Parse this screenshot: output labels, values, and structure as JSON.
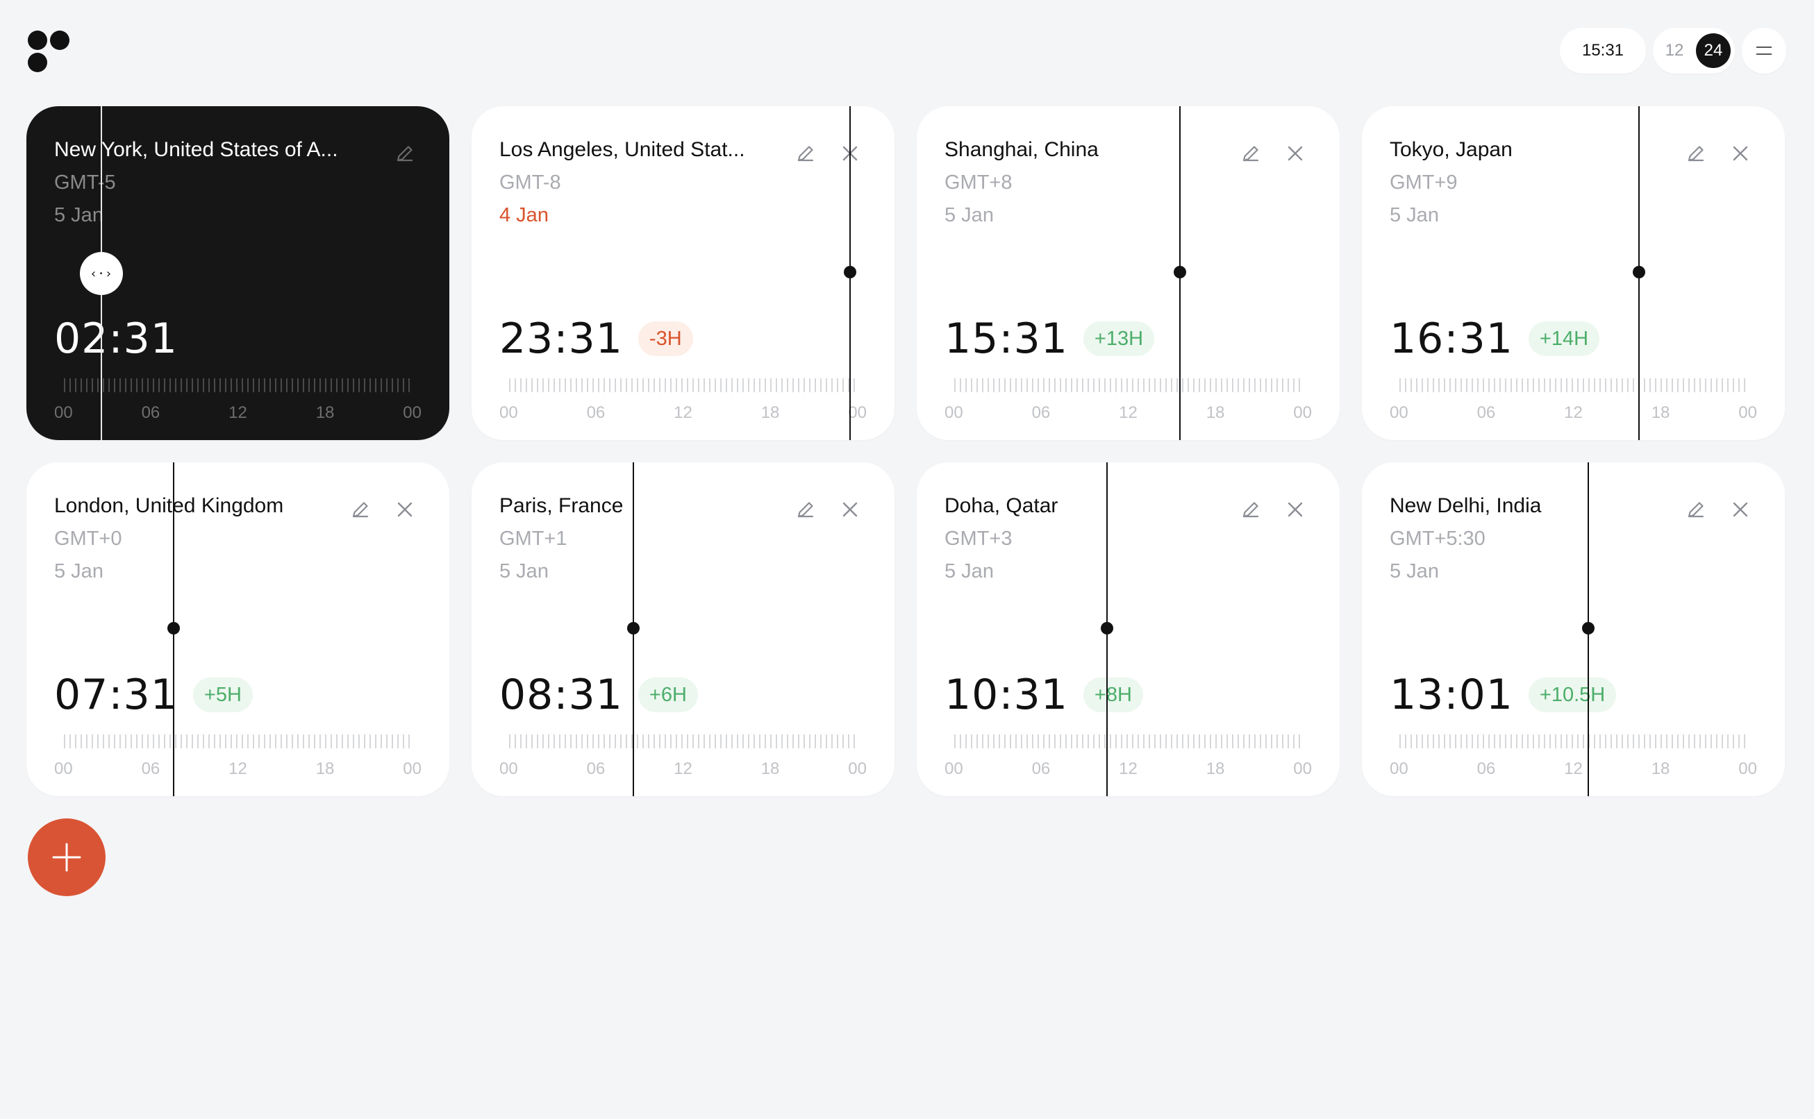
{
  "header": {
    "current_time": "15:31",
    "format_options": [
      "12",
      "24"
    ],
    "active_format": "24"
  },
  "colors": {
    "accent": "#d95434",
    "positive": "#4cae6a",
    "negative": "#d9532a",
    "dark_card": "#161616",
    "background": "#f4f5f7"
  },
  "timeline_labels": [
    "00",
    "06",
    "12",
    "18",
    "00"
  ],
  "cards": [
    {
      "city": "New York, United States of A...",
      "gmt": "GMT-5",
      "date": "5 Jan",
      "date_prev": false,
      "time": "02:31",
      "diff": "",
      "diff_sign": "",
      "day_fraction": 0.105,
      "selected": true,
      "removable": false,
      "handle_label": "‹·›"
    },
    {
      "city": "Los Angeles, United Stat...",
      "gmt": "GMT-8",
      "date": "4 Jan",
      "date_prev": true,
      "time": "23:31",
      "diff": "-3H",
      "diff_sign": "neg",
      "day_fraction": 0.98,
      "selected": false,
      "removable": true
    },
    {
      "city": "Shanghai, China",
      "gmt": "GMT+8",
      "date": "5 Jan",
      "date_prev": false,
      "time": "15:31",
      "diff": "+13H",
      "diff_sign": "pos",
      "day_fraction": 0.647,
      "selected": false,
      "removable": true
    },
    {
      "city": "Tokyo, Japan",
      "gmt": "GMT+9",
      "date": "5 Jan",
      "date_prev": false,
      "time": "16:31",
      "diff": "+14H",
      "diff_sign": "pos",
      "day_fraction": 0.688,
      "selected": false,
      "removable": true
    },
    {
      "city": "London, United Kingdom",
      "gmt": "GMT+0",
      "date": "5 Jan",
      "date_prev": false,
      "time": "07:31",
      "diff": "+5H",
      "diff_sign": "pos",
      "day_fraction": 0.313,
      "selected": false,
      "removable": true
    },
    {
      "city": "Paris, France",
      "gmt": "GMT+1",
      "date": "5 Jan",
      "date_prev": false,
      "time": "08:31",
      "diff": "+6H",
      "diff_sign": "pos",
      "day_fraction": 0.355,
      "selected": false,
      "removable": true
    },
    {
      "city": "Doha, Qatar",
      "gmt": "GMT+3",
      "date": "5 Jan",
      "date_prev": false,
      "time": "10:31",
      "diff": "+8H",
      "diff_sign": "pos",
      "day_fraction": 0.438,
      "selected": false,
      "removable": true
    },
    {
      "city": "New Delhi, India",
      "gmt": "GMT+5:30",
      "date": "5 Jan",
      "date_prev": false,
      "time": "13:01",
      "diff": "+10.5H",
      "diff_sign": "pos",
      "day_fraction": 0.542,
      "selected": false,
      "removable": true
    }
  ],
  "icons": {
    "logo": "app-logo",
    "edit": "pencil-icon",
    "remove": "close-icon",
    "add": "plus-icon",
    "menu": "menu-icon"
  }
}
